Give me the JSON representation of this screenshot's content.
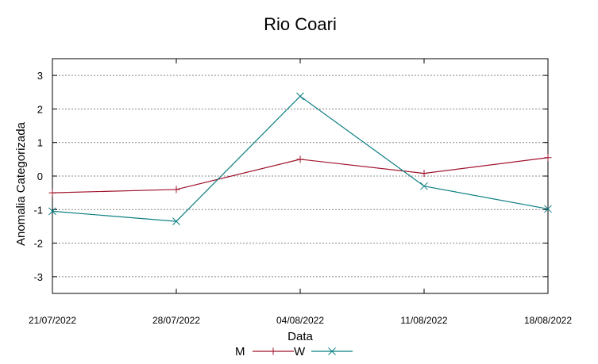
{
  "chart_data": {
    "type": "line",
    "title": "Rio Coari",
    "xlabel": "Data",
    "ylabel": "Anomalia Categorizada",
    "categories": [
      "21/07/2022",
      "28/07/2022",
      "04/08/2022",
      "11/08/2022",
      "18/08/2022"
    ],
    "yticks": [
      "3",
      "2",
      "1",
      "0",
      "-1",
      "-2",
      "-3"
    ],
    "ylim": [
      -3.5,
      3.5
    ],
    "grid": true,
    "legend_position": "bottom",
    "series": [
      {
        "name": "M",
        "marker": "plus",
        "color": "#a0142c",
        "values": [
          -0.5,
          -0.4,
          0.5,
          0.08,
          0.55
        ]
      },
      {
        "name": "W",
        "marker": "cross",
        "color": "#0d7f83",
        "values": [
          -1.05,
          -1.35,
          2.38,
          -0.3,
          -0.98
        ]
      }
    ]
  }
}
